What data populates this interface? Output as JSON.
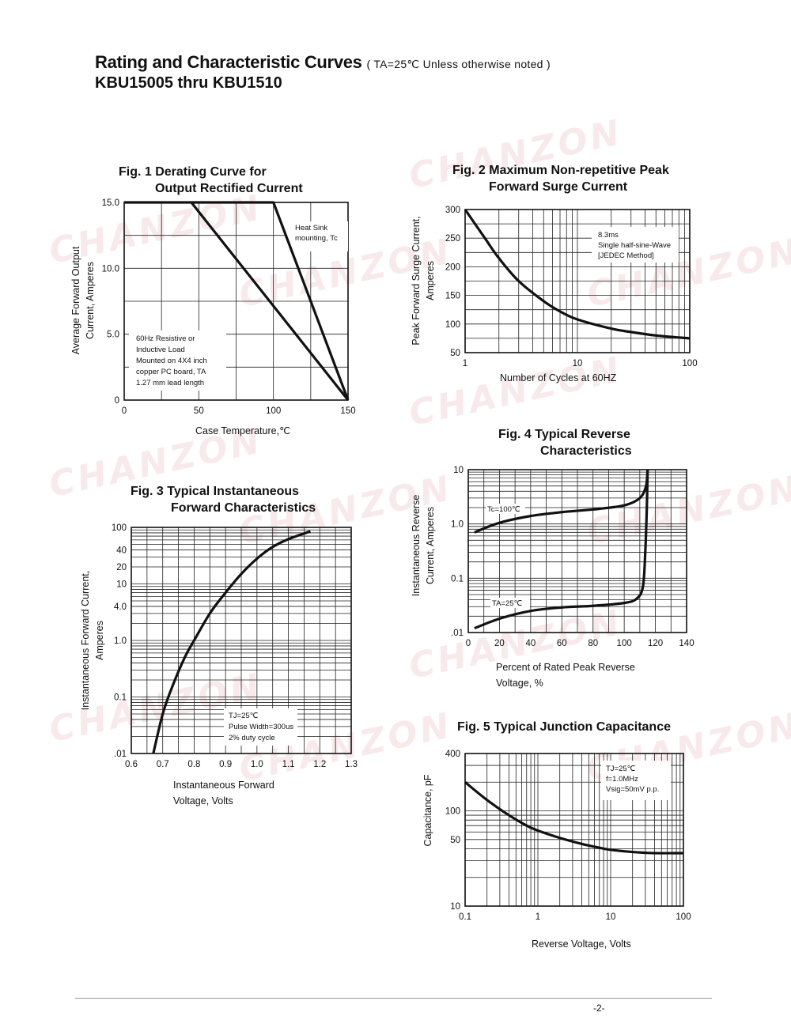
{
  "header": {
    "title": "Rating and Characteristic Curves",
    "note": "( TA=25℃ Unless otherwise noted )",
    "subtitle": "KBU15005 thru KBU1510"
  },
  "watermark": "CHANZON",
  "footer": {
    "page_number": "-2-"
  },
  "chart_data": [
    {
      "id": "fig1",
      "type": "line",
      "title": [
        "Fig. 1 Derating Curve for",
        "Output Rectified Current"
      ],
      "xlabel": "Case Temperature,℃",
      "ylabel": [
        "Average Forward Output",
        "Current, Amperes"
      ],
      "xlim": [
        0,
        150
      ],
      "ylim": [
        0,
        15
      ],
      "x_ticks": [
        0,
        50,
        100,
        150
      ],
      "x_tick_labels": [
        "0",
        "50",
        "100",
        "150"
      ],
      "y_ticks": [
        0,
        5,
        10,
        15
      ],
      "y_tick_labels": [
        "0",
        "5.0",
        "10.0",
        "15.0"
      ],
      "x_scale": "linear",
      "y_scale": "linear",
      "grid": true,
      "series": [
        {
          "points": [
            [
              0,
              15
            ],
            [
              100,
              15
            ],
            [
              150,
              0
            ]
          ]
        },
        {
          "points": [
            [
              45,
              15
            ],
            [
              150,
              0
            ]
          ]
        }
      ],
      "annotations": [
        {
          "lines": [
            "Heat Sink",
            "mounting, Tc"
          ]
        },
        {
          "lines": [
            "60Hz Resistive or",
            "Inductive Load",
            "Mounted on 4X4 inch",
            "copper PC board, TA",
            "1.27 mm lead length"
          ]
        }
      ]
    },
    {
      "id": "fig2",
      "type": "line",
      "title": [
        "Fig. 2 Maximum Non-repetitive Peak",
        "Forward Surge Current"
      ],
      "xlabel": "Number of Cycles at 60HZ",
      "ylabel": [
        "Peak Forward Surge Current,",
        "Amperes"
      ],
      "xlim": [
        1,
        100
      ],
      "ylim": [
        50,
        300
      ],
      "x_ticks": [
        1,
        10,
        100
      ],
      "x_tick_labels": [
        "1",
        "10",
        "100"
      ],
      "y_ticks": [
        50,
        100,
        150,
        200,
        250,
        300
      ],
      "y_tick_labels": [
        "50",
        "100",
        "150",
        "200",
        "250",
        "300"
      ],
      "x_scale": "log",
      "y_scale": "linear",
      "grid": true,
      "series": [
        {
          "points": [
            [
              1,
              300
            ],
            [
              1.5,
              250
            ],
            [
              2,
              215
            ],
            [
              3,
              175
            ],
            [
              5,
              140
            ],
            [
              7,
              122
            ],
            [
              10,
              108
            ],
            [
              20,
              92
            ],
            [
              30,
              86
            ],
            [
              50,
              80
            ],
            [
              100,
              75
            ]
          ]
        }
      ],
      "annotations": [
        {
          "lines": [
            "8.3ms",
            "Single half-sine-Wave",
            "[JEDEC Method]"
          ]
        }
      ]
    },
    {
      "id": "fig3",
      "type": "line",
      "title": [
        "Fig. 3 Typical Instantaneous",
        "Forward Characteristics"
      ],
      "xlabel": [
        "Instantaneous Forward",
        "Voltage, Volts"
      ],
      "ylabel": [
        "Instantaneous Forward Current,",
        "Amperes"
      ],
      "xlim": [
        0.6,
        1.3
      ],
      "ylim": [
        0.01,
        100
      ],
      "x_ticks": [
        0.6,
        0.7,
        0.8,
        0.9,
        1.0,
        1.1,
        1.2,
        1.3
      ],
      "x_tick_labels": [
        "0.6",
        "0.7",
        "0.8",
        "0.9",
        "1.0",
        "1.1",
        "1.2",
        "1.3"
      ],
      "y_ticks": [
        0.01,
        0.1,
        1,
        4,
        10,
        20,
        40,
        100
      ],
      "y_tick_labels": [
        ".01",
        "0.1",
        "1.0",
        "4.0",
        "10",
        "20",
        "40",
        "100"
      ],
      "x_scale": "linear",
      "y_scale": "log",
      "grid": true,
      "series": [
        {
          "points": [
            [
              0.67,
              0.01
            ],
            [
              0.7,
              0.05
            ],
            [
              0.73,
              0.15
            ],
            [
              0.77,
              0.5
            ],
            [
              0.8,
              1
            ],
            [
              0.85,
              3
            ],
            [
              0.9,
              7
            ],
            [
              0.95,
              15
            ],
            [
              1.0,
              28
            ],
            [
              1.05,
              45
            ],
            [
              1.1,
              62
            ],
            [
              1.17,
              85
            ]
          ]
        }
      ],
      "annotations": [
        {
          "lines": [
            "TJ=25℃",
            "Pulse Width=300us",
            "2% duty cycle"
          ]
        }
      ]
    },
    {
      "id": "fig4",
      "type": "line",
      "title": [
        "Fig. 4 Typical Reverse",
        "Characteristics"
      ],
      "xlabel": [
        "Percent of Rated Peak Reverse",
        "Voltage, %"
      ],
      "ylabel": [
        "Instantaneous Reverse",
        "Current, Amperes"
      ],
      "xlim": [
        0,
        140
      ],
      "ylim": [
        0.01,
        10
      ],
      "x_ticks": [
        0,
        20,
        40,
        60,
        80,
        100,
        120,
        140
      ],
      "x_tick_labels": [
        "0",
        "20",
        "40",
        "60",
        "80",
        "100",
        "120",
        "140"
      ],
      "y_ticks": [
        0.01,
        0.1,
        1,
        10
      ],
      "y_tick_labels": [
        ".01",
        "0.1",
        "1.0",
        "10"
      ],
      "x_scale": "linear",
      "y_scale": "log",
      "grid": true,
      "series": [
        {
          "name": "Tc=100℃",
          "points": [
            [
              4,
              0.7
            ],
            [
              20,
              1.05
            ],
            [
              40,
              1.4
            ],
            [
              60,
              1.65
            ],
            [
              80,
              1.85
            ],
            [
              100,
              2.2
            ],
            [
              110,
              3
            ],
            [
              114,
              5
            ],
            [
              115,
              10
            ]
          ]
        },
        {
          "name": "TA=25℃",
          "points": [
            [
              4,
              0.012
            ],
            [
              20,
              0.018
            ],
            [
              40,
              0.025
            ],
            [
              60,
              0.029
            ],
            [
              80,
              0.031
            ],
            [
              100,
              0.035
            ],
            [
              108,
              0.042
            ],
            [
              112,
              0.07
            ],
            [
              113.5,
              0.3
            ],
            [
              114.5,
              2
            ],
            [
              115,
              10
            ]
          ]
        }
      ]
    },
    {
      "id": "fig5",
      "type": "line",
      "title": [
        "Fig. 5 Typical Junction Capacitance"
      ],
      "xlabel": "Reverse Voltage, Volts",
      "ylabel": "Capacitance, pF",
      "xlim": [
        0.1,
        100
      ],
      "ylim": [
        10,
        400
      ],
      "x_ticks": [
        0.1,
        1,
        10,
        100
      ],
      "x_tick_labels": [
        "0.1",
        "1",
        "10",
        "100"
      ],
      "y_ticks": [
        10,
        50,
        100,
        400
      ],
      "y_tick_labels": [
        "10",
        "50",
        "100",
        "400"
      ],
      "x_scale": "log",
      "y_scale": "log",
      "grid": true,
      "series": [
        {
          "points": [
            [
              0.1,
              200
            ],
            [
              0.2,
              130
            ],
            [
              0.4,
              90
            ],
            [
              0.7,
              70
            ],
            [
              1,
              62
            ],
            [
              2,
              52
            ],
            [
              4,
              45
            ],
            [
              7,
              41
            ],
            [
              10,
              39
            ],
            [
              20,
              37
            ],
            [
              40,
              36
            ],
            [
              100,
              36
            ]
          ]
        }
      ],
      "annotations": [
        {
          "lines": [
            "TJ=25℃",
            "f=1.0MHz",
            "Vsig=50mV p.p."
          ]
        }
      ]
    }
  ]
}
